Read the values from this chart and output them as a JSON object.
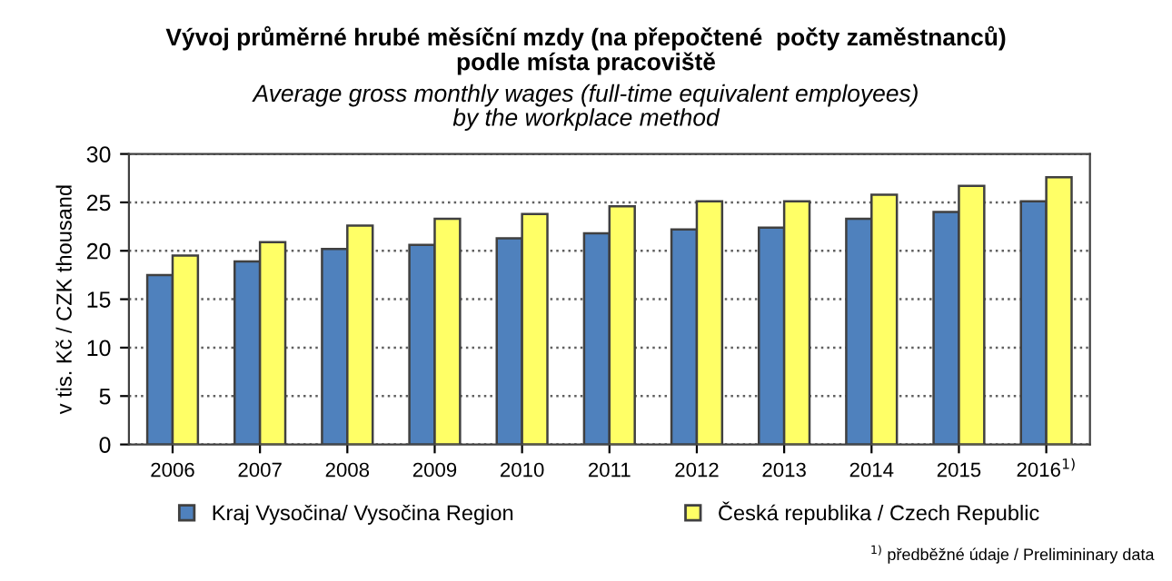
{
  "chart_data": {
    "type": "bar",
    "title": "Vývoj průměrné hrubé měsíční mzdy (na přepočtené  počty zaměstnanců)\npodle místa pracoviště",
    "subtitle": "Average gross monthly wages (full-time equivalent employees)\nby the workplace method",
    "ylabel": "v tis. Kč / CZK thousand",
    "categories": [
      "2006",
      "2007",
      "2008",
      "2009",
      "2010",
      "2011",
      "2012",
      "2013",
      "2014",
      "2015",
      "2016$^{1)}$"
    ],
    "series": [
      {
        "name": "Kraj Vysočina/ Vysočina Region",
        "color": "#4f81bd",
        "values": [
          17.5,
          18.9,
          20.2,
          20.6,
          21.3,
          21.8,
          22.2,
          22.4,
          23.3,
          24.0,
          25.1
        ]
      },
      {
        "name": "Česká republika / Czech Republic",
        "color": "#ffff66",
        "values": [
          19.5,
          20.9,
          22.6,
          23.3,
          23.8,
          24.6,
          25.1,
          25.1,
          25.8,
          26.7,
          27.6
        ]
      }
    ],
    "ylim": [
      0,
      30
    ],
    "yticks": [
      0,
      5,
      10,
      15,
      20,
      25,
      30
    ],
    "grid": "y",
    "legend": "bottom",
    "annotations": [
      "$^{1)}$ předběžné údaje / Prelimininary data"
    ]
  }
}
